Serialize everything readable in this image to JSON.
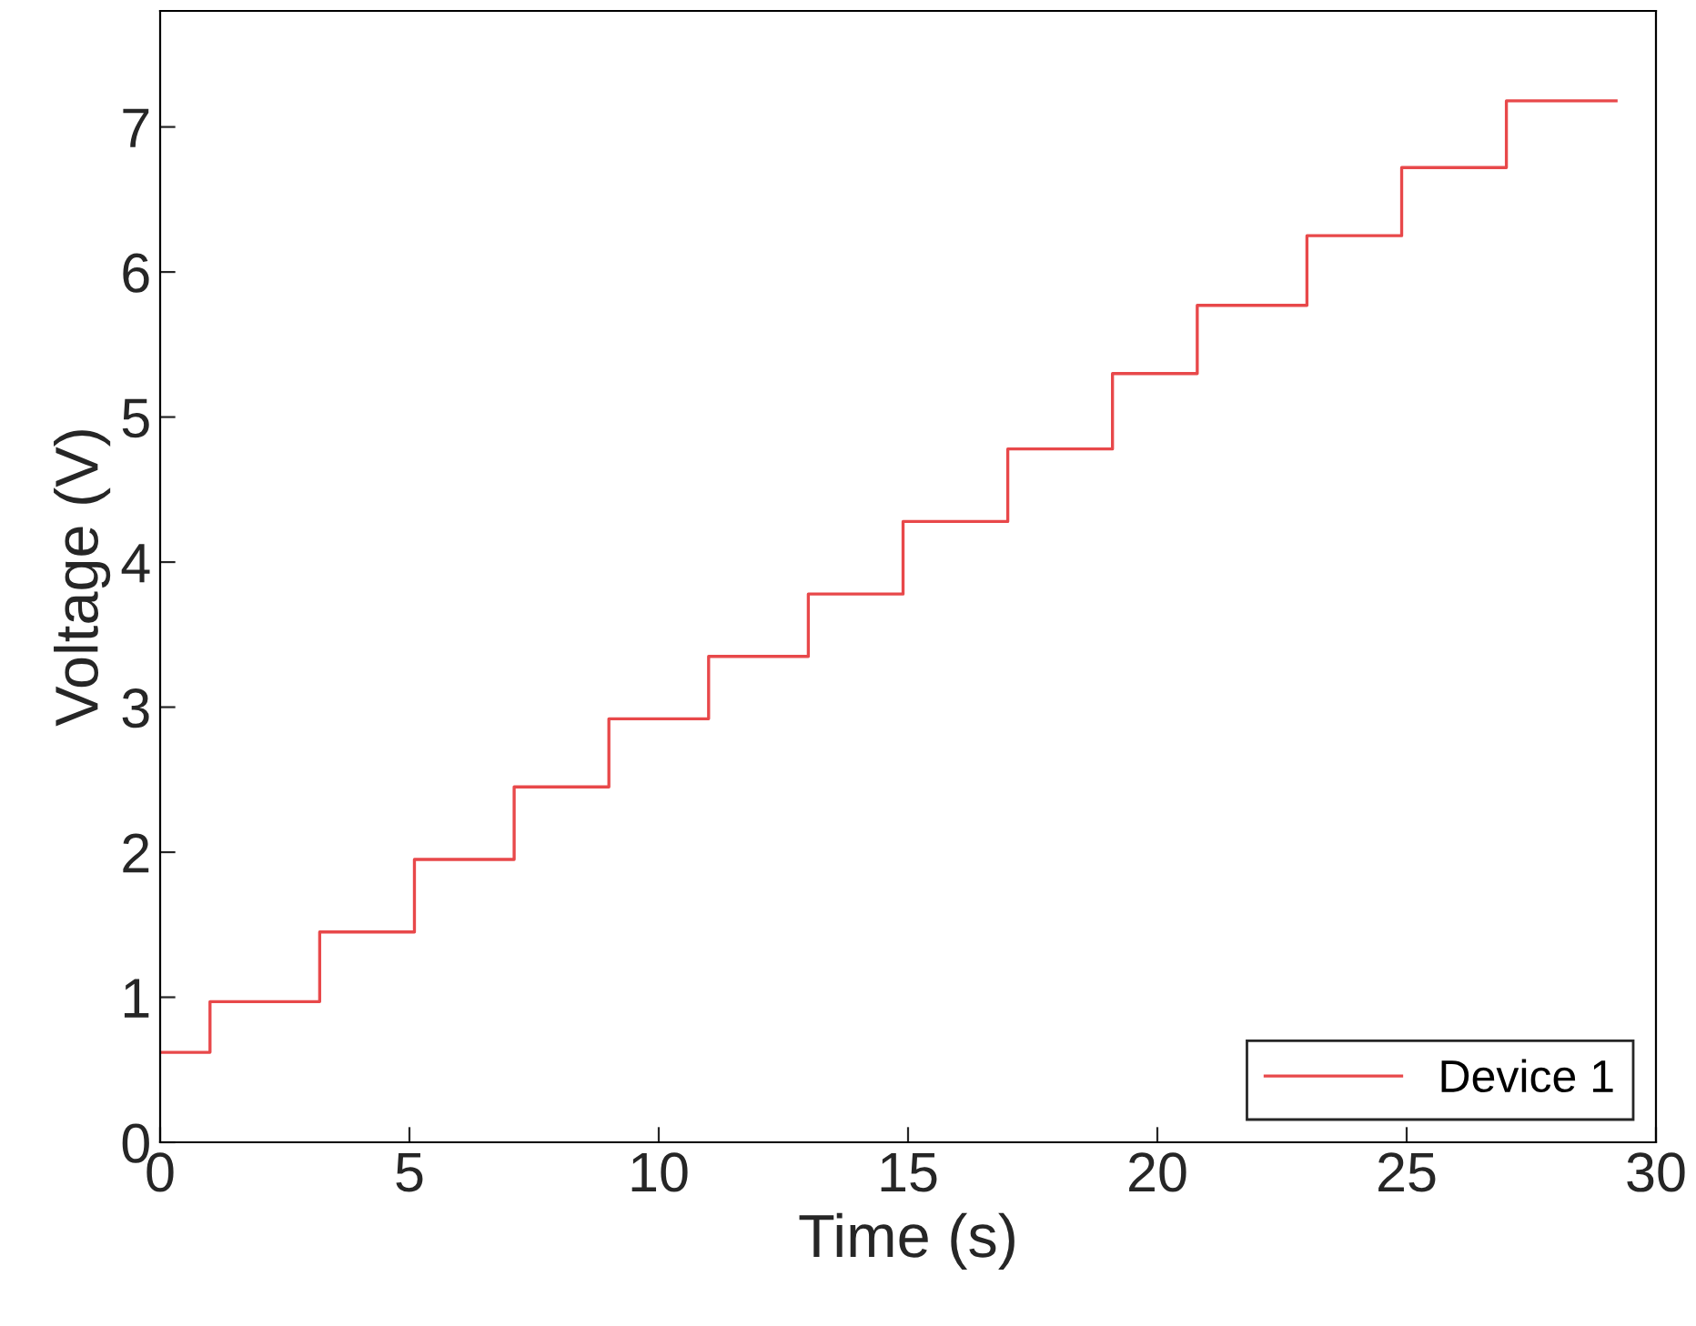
{
  "chart_data": {
    "type": "step",
    "xlabel": "Time (s)",
    "ylabel": "Voltage (V)",
    "xlim": [
      0,
      30
    ],
    "ylim": [
      0,
      7.8
    ],
    "xticks": [
      0,
      5,
      10,
      15,
      20,
      25,
      30
    ],
    "yticks": [
      0,
      1,
      2,
      3,
      4,
      5,
      6,
      7
    ],
    "grid": false,
    "legend": "bottom right",
    "line_style": "solid",
    "marker": "none",
    "series": [
      {
        "name": "Device 1",
        "color": "#e8484a",
        "x": [
          0,
          1.0,
          3.2,
          5.1,
          7.1,
          9.0,
          11.0,
          13.0,
          14.9,
          17.0,
          19.1,
          20.8,
          23.0,
          24.9,
          27.0,
          29.2
        ],
        "values": [
          0.62,
          0.97,
          1.45,
          1.95,
          2.45,
          2.92,
          3.35,
          3.78,
          4.28,
          4.78,
          5.3,
          5.77,
          6.25,
          6.72,
          7.18,
          7.18
        ]
      }
    ]
  }
}
